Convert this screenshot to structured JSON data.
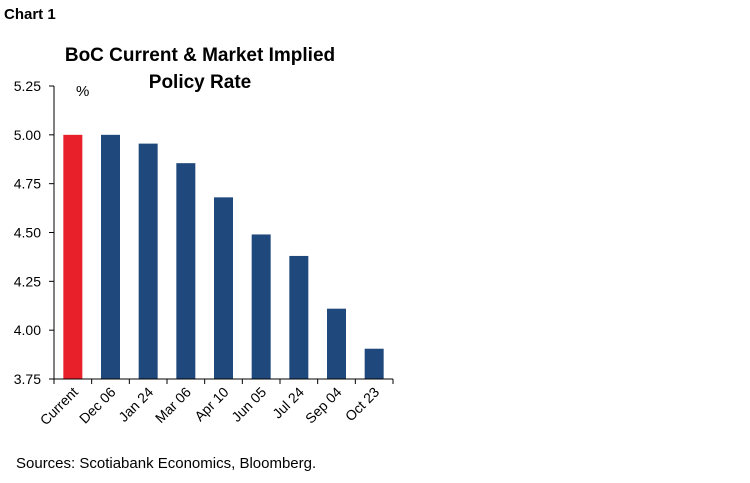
{
  "header": {
    "chart_number": "Chart 1"
  },
  "source": "Sources: Scotiabank Economics, Bloomberg.",
  "chart_data": {
    "type": "bar",
    "title": "BoC Current & Market Implied Policy Rate",
    "title_lines": [
      "BoC Current & Market Implied",
      "Policy Rate"
    ],
    "ylabel": "%",
    "categories": [
      "Current",
      "Dec 06",
      "Jan 24",
      "Mar 06",
      "Apr 10",
      "Jun 05",
      "Jul 24",
      "Sep 04",
      "Oct 23"
    ],
    "values": [
      5.0,
      5.0,
      4.955,
      4.855,
      4.68,
      4.49,
      4.38,
      4.11,
      3.905
    ],
    "ylim": [
      3.75,
      5.25
    ],
    "yticks": [
      "3.75",
      "4.00",
      "4.25",
      "4.50",
      "4.75",
      "5.00",
      "5.25"
    ],
    "grid": false,
    "colors": {
      "current": "#E8202A",
      "implied": "#1F497D"
    }
  }
}
